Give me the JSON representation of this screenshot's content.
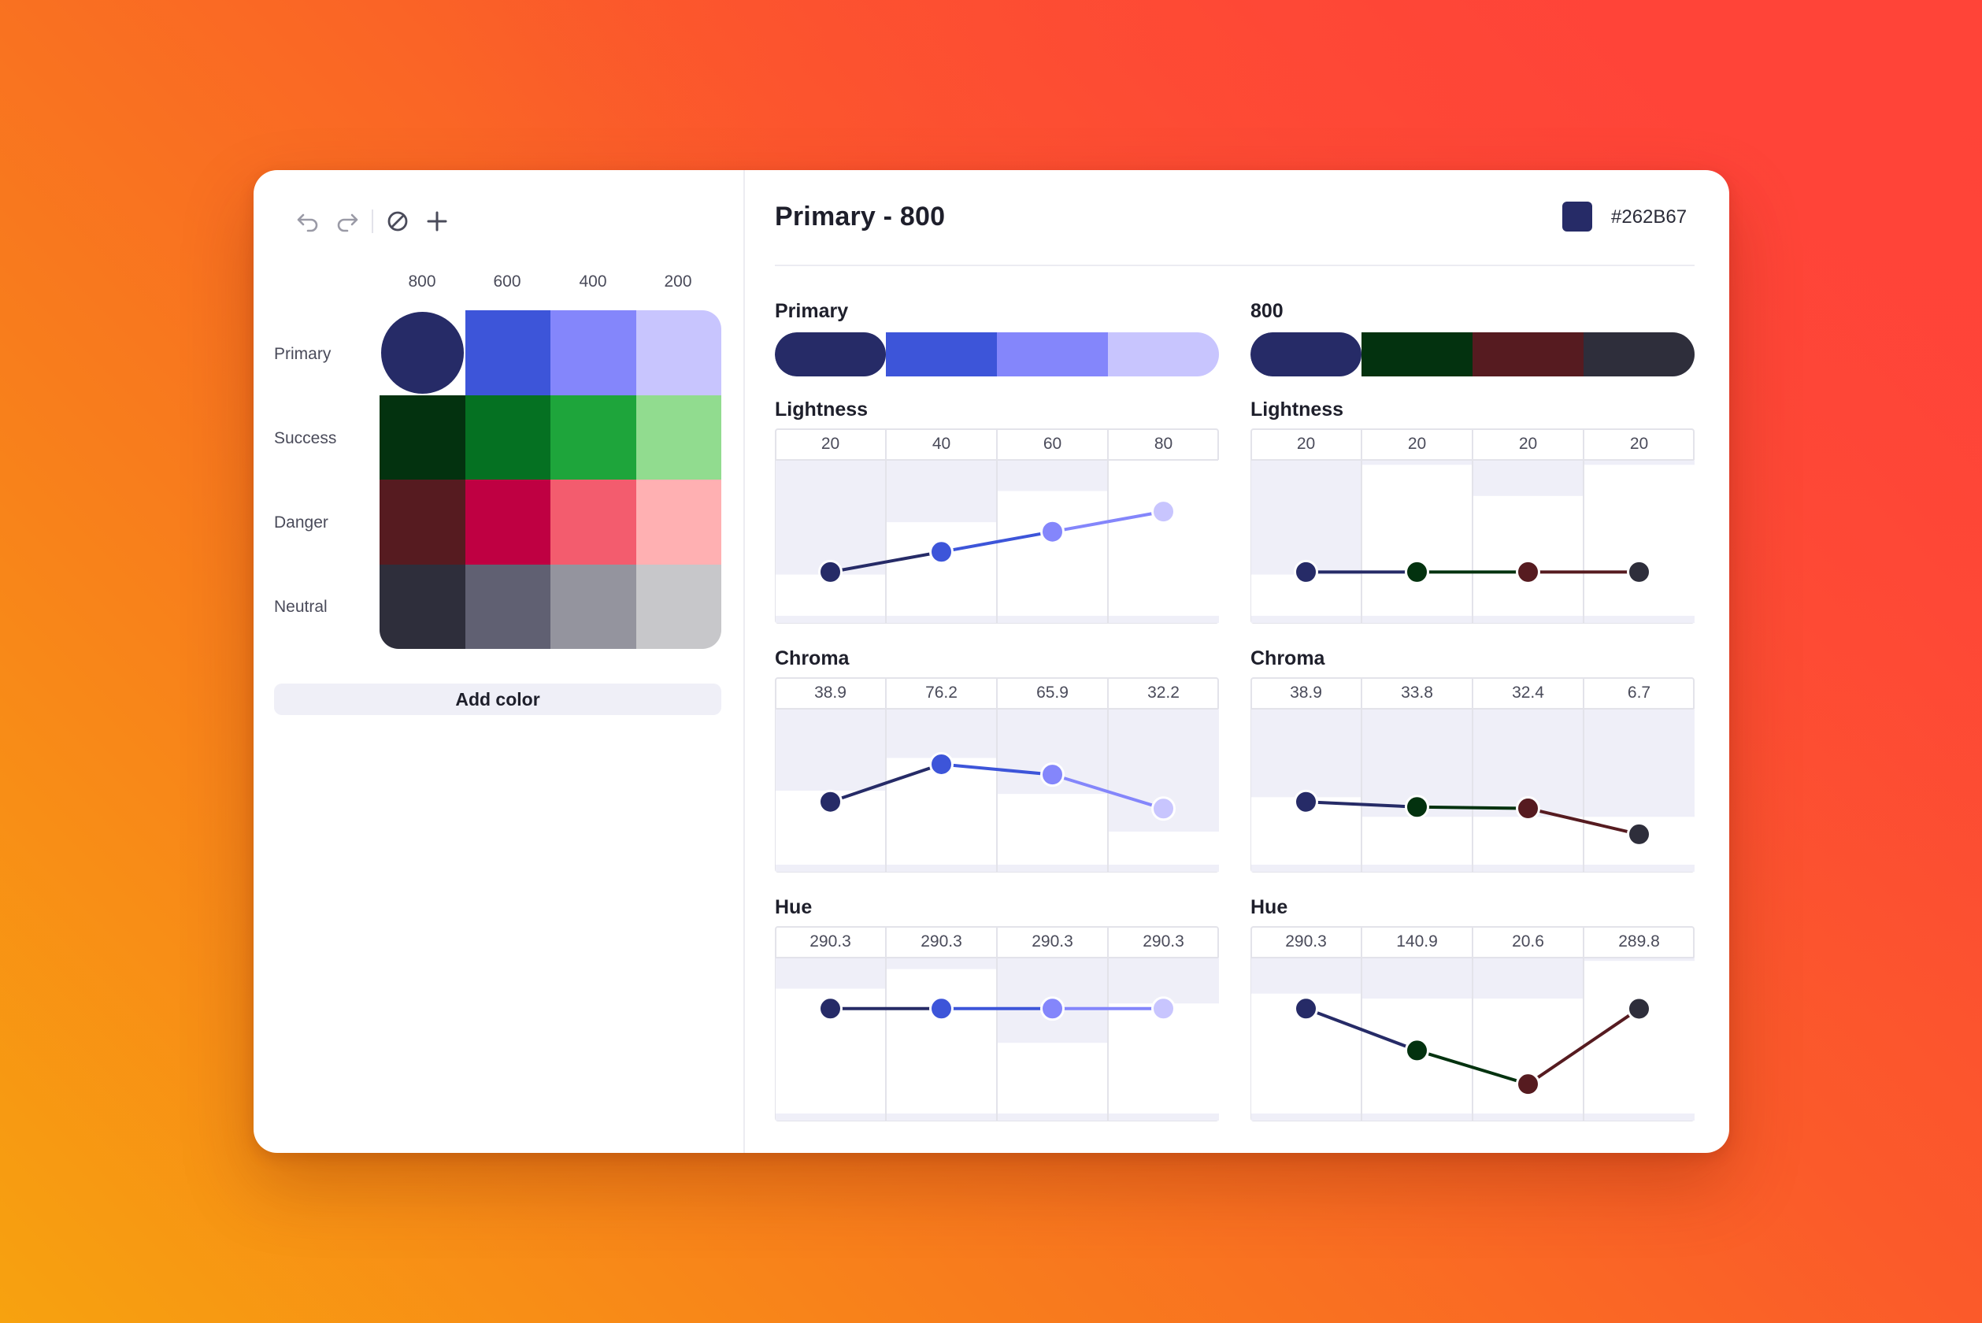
{
  "toolbar": {
    "icons": [
      "undo-icon",
      "redo-icon",
      "disable-icon",
      "plus-icon"
    ]
  },
  "palette": {
    "shades": [
      "800",
      "600",
      "400",
      "200"
    ],
    "rows": [
      {
        "name": "Primary",
        "colors": [
          "#262B67",
          "#3D55D9",
          "#8486FB",
          "#C8C5FE"
        ]
      },
      {
        "name": "Success",
        "colors": [
          "#03320F",
          "#057122",
          "#1EA53B",
          "#91DC8F"
        ]
      },
      {
        "name": "Danger",
        "colors": [
          "#561B20",
          "#BF0042",
          "#F35C6E",
          "#FFB0B2"
        ]
      },
      {
        "name": "Neutral",
        "colors": [
          "#2E2E3B",
          "#606072",
          "#94949E",
          "#C7C7CA"
        ]
      }
    ],
    "selected": {
      "row": 0,
      "col": 0
    },
    "add_color_label": "Add color"
  },
  "detail": {
    "title": "Primary - 800",
    "hex": "#262B67",
    "left": {
      "title": "Primary",
      "colors": [
        "#262B67",
        "#3D55D9",
        "#8486FB",
        "#C8C5FE"
      ]
    },
    "right": {
      "title": "800",
      "colors": [
        "#262B67",
        "#03320F",
        "#561B20",
        "#2E2E3B"
      ]
    }
  },
  "charts": {
    "left": [
      {
        "label": "Lightness",
        "values": [
          20,
          40,
          60,
          80
        ],
        "labels": [
          "20",
          "40",
          "60",
          "80"
        ],
        "range": [
          0,
          100
        ],
        "col_tops": [
          0.3,
          0.62,
          0.81,
          1.0
        ]
      },
      {
        "label": "Chroma",
        "values": [
          38.9,
          76.2,
          65.9,
          32.2
        ],
        "labels": [
          "38.9",
          "76.2",
          "65.9",
          "32.2"
        ],
        "range": [
          0,
          100
        ],
        "col_tops": [
          0.5,
          0.7,
          0.48,
          0.25
        ]
      },
      {
        "label": "Hue",
        "values": [
          290.3,
          290.3,
          290.3,
          290.3
        ],
        "labels": [
          "290.3",
          "290.3",
          "290.3",
          "290.3"
        ],
        "range": [
          0,
          360
        ],
        "col_tops": [
          0.81,
          0.93,
          0.48,
          0.72
        ]
      }
    ],
    "right": [
      {
        "label": "Lightness",
        "values": [
          20,
          20,
          20,
          20
        ],
        "labels": [
          "20",
          "20",
          "20",
          "20"
        ],
        "range": [
          0,
          100
        ],
        "col_tops": [
          0.3,
          0.97,
          0.78,
          0.97
        ]
      },
      {
        "label": "Chroma",
        "values": [
          38.9,
          33.8,
          32.4,
          6.7
        ],
        "labels": [
          "38.9",
          "33.8",
          "32.4",
          "6.7"
        ],
        "range": [
          0,
          100
        ],
        "col_tops": [
          0.46,
          0.34,
          0.34,
          0.34
        ]
      },
      {
        "label": "Hue",
        "values": [
          290.3,
          140.9,
          20.6,
          289.8
        ],
        "labels": [
          "290.3",
          "140.9",
          "20.6",
          "289.8"
        ],
        "range": [
          0,
          360
        ],
        "col_tops": [
          0.78,
          0.75,
          0.75,
          0.98
        ]
      }
    ]
  }
}
